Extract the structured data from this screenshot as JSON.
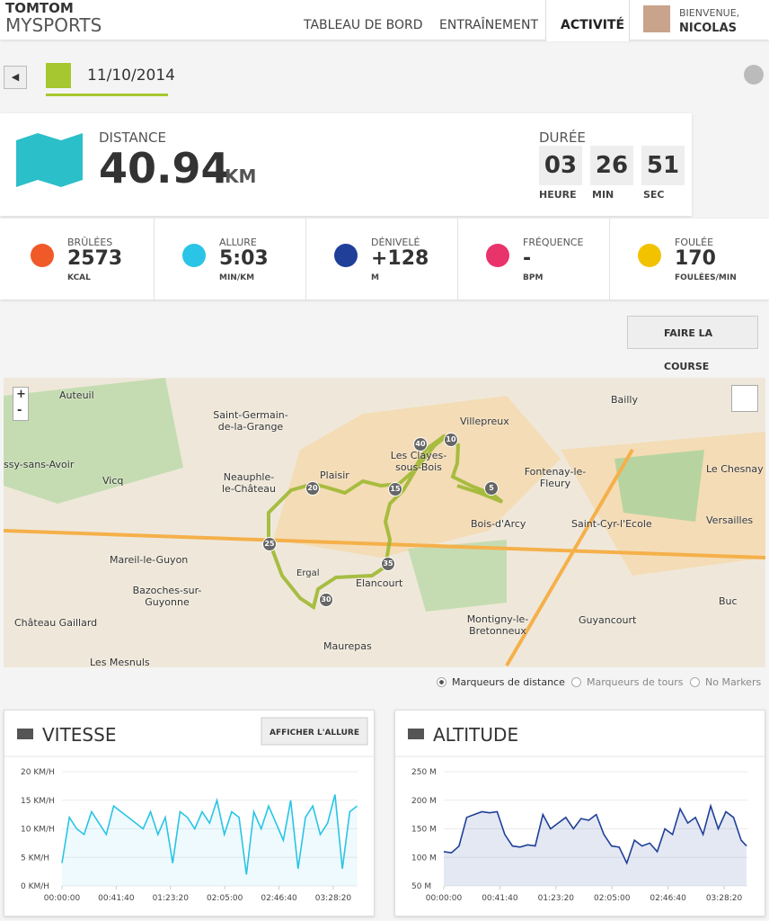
{
  "header": {
    "logo_top": "TOMTOM",
    "logo_bottom": "MYSPORTS",
    "nav": [
      "TABLEAU DE BORD",
      "ENTRAÎNEMENT",
      "ACTIVITÉ"
    ],
    "welcome": "BIENVENUE,",
    "user": "NICOLAS"
  },
  "activity": {
    "date": "11/10/2014"
  },
  "summary": {
    "distance_label": "DISTANCE",
    "distance": "40.94",
    "distance_unit": "KM",
    "duration_label": "DURÉE",
    "duration": [
      {
        "value": "03",
        "unit": "HEURE"
      },
      {
        "value": "26",
        "unit": "MIN"
      },
      {
        "value": "51",
        "unit": "SEC"
      }
    ]
  },
  "metrics": [
    {
      "label": "BRÛLÉES",
      "value": "2573",
      "unit": "KCAL"
    },
    {
      "label": "ALLURE",
      "value": "5:03",
      "unit": "MIN/KM"
    },
    {
      "label": "DÉNIVELÉ",
      "value": "+128",
      "unit": "M"
    },
    {
      "label": "FRÉQUENCE",
      "value": "-",
      "unit": "BPM"
    },
    {
      "label": "FOULÉE",
      "value": "170",
      "unit": "FOULÉES/MIN"
    }
  ],
  "race_button": "FAIRE LA COURSE",
  "map": {
    "zoom_in": "+",
    "zoom_out": "-",
    "places": [
      "Auteuil",
      "Saint-Germain-de-la-Grange",
      "Villepreux",
      "Bailly",
      "Les Clayes-sous-Bois",
      "Plaisir",
      "Neauphle-le-Château",
      "Fontenay-le-Fleury",
      "Le Chesnay",
      "Versailles",
      "ssy-sans-Avoir",
      "Vicq",
      "Bois-d'Arcy",
      "Saint-Cyr-l'Ecole",
      "Mareil-le-Guyon",
      "Elancourt",
      "Bazoches-sur-Guyonne",
      "Guyancourt",
      "Montigny-le-Bretonneux",
      "Maurepas",
      "Château Gaillard",
      "Les Mesnuls",
      "Buc",
      "Ergal"
    ],
    "markers": [
      "5",
      "10",
      "15",
      "20",
      "25",
      "30",
      "35",
      "40"
    ],
    "options": [
      "Marqueurs de distance",
      "Marqueurs de tours",
      "No Markers"
    ]
  },
  "chart_data": [
    {
      "type": "line",
      "title": "VITESSE",
      "button": "AFFICHER L'ALLURE",
      "color": "#29c4e6",
      "x": [
        0,
        340,
        680,
        1020,
        1360,
        1700,
        2040,
        2380,
        2720,
        3060,
        3400,
        3740,
        4080,
        4420,
        4760,
        5100,
        5440,
        5780,
        6120,
        6460,
        6800,
        7140,
        7480,
        7820,
        8160,
        8500,
        8840,
        9180,
        9520,
        9860,
        10200,
        10540,
        10880,
        11220,
        11560,
        11900,
        12240,
        12580,
        12920,
        13260,
        13600
      ],
      "values": [
        4,
        12,
        10,
        9,
        13,
        11,
        9,
        14,
        13,
        12,
        11,
        10,
        13,
        9,
        12,
        4,
        13,
        12,
        10,
        13,
        11,
        15,
        9,
        13,
        12,
        2,
        13,
        10,
        14,
        11,
        8,
        15,
        3,
        12,
        14,
        9,
        11,
        16,
        3,
        13,
        14
      ],
      "xlim": [
        0,
        13620
      ],
      "ylim": [
        0,
        20
      ],
      "xticks": [
        {
          "value": 0,
          "label": "00:00:00"
        },
        {
          "value": 2500,
          "label": "00:41:40"
        },
        {
          "value": 5000,
          "label": "01:23:20"
        },
        {
          "value": 7500,
          "label": "02:05:00"
        },
        {
          "value": 10000,
          "label": "02:46:40"
        },
        {
          "value": 12500,
          "label": "03:28:20"
        }
      ],
      "yticks": [
        {
          "value": 0,
          "label": "0 KM/H"
        },
        {
          "value": 5,
          "label": "5 KM/H"
        },
        {
          "value": 10,
          "label": "10 KM/H"
        },
        {
          "value": 15,
          "label": "15 KM/H"
        },
        {
          "value": 20,
          "label": "20 KM/H"
        }
      ]
    },
    {
      "type": "area",
      "title": "ALTITUDE",
      "color": "#1f3f99",
      "x": [
        0,
        340,
        680,
        1020,
        1360,
        1700,
        2040,
        2380,
        2720,
        3060,
        3400,
        3740,
        4080,
        4420,
        4760,
        5100,
        5440,
        5780,
        6120,
        6460,
        6800,
        7140,
        7480,
        7820,
        8160,
        8500,
        8840,
        9180,
        9520,
        9860,
        10200,
        10540,
        10880,
        11220,
        11560,
        11900,
        12240,
        12580,
        12920,
        13260,
        13500
      ],
      "values": [
        110,
        108,
        120,
        170,
        175,
        180,
        178,
        180,
        140,
        120,
        118,
        122,
        120,
        175,
        150,
        160,
        170,
        150,
        168,
        165,
        175,
        140,
        120,
        118,
        90,
        130,
        120,
        125,
        110,
        150,
        140,
        185,
        160,
        170,
        140,
        190,
        150,
        180,
        170,
        130,
        120
      ],
      "xlim": [
        0,
        13540
      ],
      "ylim": [
        50,
        250
      ],
      "xticks": [
        {
          "value": 0,
          "label": "00:00:00"
        },
        {
          "value": 2500,
          "label": "00:41:40"
        },
        {
          "value": 5000,
          "label": "01:23:20"
        },
        {
          "value": 7500,
          "label": "02:05:00"
        },
        {
          "value": 10000,
          "label": "02:46:40"
        },
        {
          "value": 12500,
          "label": "03:28:20"
        }
      ],
      "yticks": [
        {
          "value": 50,
          "label": "50 M"
        },
        {
          "value": 100,
          "label": "100 M"
        },
        {
          "value": 150,
          "label": "150 M"
        },
        {
          "value": 200,
          "label": "200 M"
        },
        {
          "value": 250,
          "label": "250 M"
        }
      ]
    }
  ]
}
